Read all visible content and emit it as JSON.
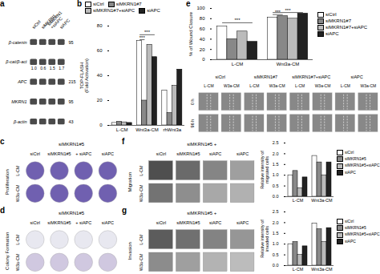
{
  "chart_data": [
    {
      "type": "blot",
      "title": "a",
      "categories": [
        "siCtrl",
        "siMKRN1",
        "siMKRN1\n+siAPC",
        "siAPC"
      ],
      "series": [
        {
          "name": "β-catenin",
          "label": "95"
        },
        {
          "name": "β-cat/β-act",
          "label": null,
          "values": [
            1.0,
            0.6,
            1.5,
            1.7
          ],
          "value_labels": [
            "1.0",
            "0.6",
            "1.5",
            "1.7"
          ]
        },
        {
          "name": "APC",
          "label": "215"
        },
        {
          "name": "MKRN1",
          "label": "95"
        },
        {
          "name": "β-actin",
          "label": "43"
        }
      ],
      "data_labels": true
    },
    {
      "type": "bar",
      "title": "b",
      "categories": [
        "L-CM",
        "Wnt3a-CM",
        "rhWnt3a"
      ],
      "series": [
        {
          "name": "siCtrl",
          "color": "#ffffff",
          "values": [
            2,
            68,
            28
          ]
        },
        {
          "name": "siMKRN1#7",
          "color": "#888888",
          "values": [
            3,
            20,
            10
          ]
        },
        {
          "name": "siMKRN1#7+siAPC",
          "color": "#bbbbbb",
          "values": [
            2.5,
            65,
            32
          ]
        },
        {
          "name": "siAPC",
          "color": "#222222",
          "values": [
            2,
            55,
            45
          ]
        }
      ],
      "ylabel": "TOP-FLASH\n(Fold Activation)",
      "ylim": [
        0,
        80
      ],
      "yticks": [
        0,
        20,
        40,
        60,
        80
      ],
      "legend": "top",
      "annotations": [
        {
          "text": "***",
          "category": "Wnt3a-CM",
          "from": "siCtrl",
          "to": "siAPC",
          "y": 73
        },
        {
          "text": "***",
          "category": "Wnt3a-CM",
          "from": "siCtrl",
          "to": "siMKRN1#7",
          "y": 69
        }
      ]
    },
    {
      "type": "bar",
      "title": "e",
      "categories": [
        "L-CM",
        "Wnt3a-CM"
      ],
      "series": [
        {
          "name": "siCtrl",
          "color": "#ffffff",
          "values": [
            65,
            82
          ]
        },
        {
          "name": "siMKRN1#7",
          "color": "#888888",
          "values": [
            40,
            85
          ]
        },
        {
          "name": "siMKRN1#7+siAPC",
          "color": "#bbbbbb",
          "values": [
            55,
            80
          ]
        },
        {
          "name": "siAPC",
          "color": "#222222",
          "values": [
            35,
            90
          ]
        }
      ],
      "ylabel": "% of Wound Closure",
      "ylim": [
        0,
        100
      ],
      "yticks": [
        0,
        20,
        40,
        60,
        80,
        100
      ],
      "legend": "right",
      "annotations": [
        {
          "text": "***",
          "category": "L-CM",
          "from": "siCtrl",
          "to": "siAPC",
          "y": 72
        },
        {
          "text": "***",
          "category": "Wnt3a-CM",
          "from": "siCtrl",
          "to": "siAPC",
          "y": 92
        },
        {
          "text": "***",
          "category": "Wnt3a-CM",
          "from": "siCtrl",
          "to": "siMKRN1#7",
          "y": 88
        }
      ]
    },
    {
      "type": "image_grid",
      "categories": [
        "siCtrl",
        "siMKRN1#7",
        "siMKRN1#7+siAPC",
        "siAPC"
      ],
      "columns": [
        "L-CM",
        "W3a-CM"
      ],
      "rows": [
        "0 h",
        "96 h"
      ]
    },
    {
      "type": "image_grid",
      "title": "c",
      "subtitle": "siMKRN1#5",
      "categories": [
        "siCtrl",
        "siMKRN1#5",
        "+ siAPC",
        "siAPC"
      ],
      "rows": [
        "L-CM",
        "W3a-CM"
      ],
      "ylabel": "Proliferation"
    },
    {
      "type": "image_grid",
      "title": "d",
      "subtitle": "siMKRN1#5",
      "categories": [
        "siCtrl",
        "siMKRN1#5",
        "+ siAPC",
        "siAPC"
      ],
      "rows": [
        "L-CM",
        "W3a-CM"
      ],
      "ylabel": "Colony Formation"
    },
    {
      "type": "image_grid",
      "title": "f",
      "subtitle": "siMKRN1#5 +",
      "categories": [
        "siCtrl",
        "siMKRN1#5",
        "siAPC",
        "siAPC"
      ],
      "rows": [
        "L-CM",
        "W3a-CM"
      ],
      "ylabel": "Migration"
    },
    {
      "type": "bar",
      "categories": [
        "L-CM",
        "Wnt3a-CM"
      ],
      "series": [
        {
          "name": "siCtrl",
          "color": "#ffffff",
          "values": [
            1.0,
            1.9
          ]
        },
        {
          "name": "siMKRN1#5",
          "color": "#888888",
          "values": [
            1.2,
            1.6
          ]
        },
        {
          "name": "siMKRN1#5+siAPC",
          "color": "#bbbbbb",
          "values": [
            0.4,
            1.0
          ]
        },
        {
          "name": "siAPC",
          "color": "#222222",
          "values": [
            0.9,
            1.6
          ]
        }
      ],
      "ylabel": "Relative intensity of\nmigrated cells",
      "ylim": [
        0,
        2.5
      ],
      "yticks": [
        {
          "value": 0,
          "label": "0.0"
        },
        0.5,
        {
          "value": 1.0,
          "label": "1.0"
        },
        1.5,
        {
          "value": 2.0,
          "label": "2.0"
        },
        2.5
      ],
      "legend": "right"
    },
    {
      "type": "image_grid",
      "title": "g",
      "subtitle": "siMKRN1#5 +",
      "categories": [
        "siCtrl",
        "siMKRN1#5",
        "siAPC",
        "siAPC"
      ],
      "rows": [
        "L-CM",
        "W3a-CM"
      ],
      "ylabel": "Invasion"
    },
    {
      "type": "bar",
      "categories": [
        "L-CM",
        "Wnt3a-CM"
      ],
      "series": [
        {
          "name": "siCtrl",
          "color": "#ffffff",
          "values": [
            1.0,
            1.95
          ]
        },
        {
          "name": "siMKRN1#5",
          "color": "#888888",
          "values": [
            1.1,
            1.7
          ]
        },
        {
          "name": "siMKRN1#5+siAPC",
          "color": "#bbbbbb",
          "values": [
            0.5,
            1.1
          ]
        },
        {
          "name": "siAPC",
          "color": "#222222",
          "values": [
            0.9,
            1.75
          ]
        }
      ],
      "ylabel": "Relative intensity of\ninvaded cells",
      "ylim": [
        0,
        2.5
      ],
      "yticks": [
        {
          "value": 0,
          "label": "0.0"
        },
        0.5,
        {
          "value": 1.0,
          "label": "1.0"
        },
        1.5,
        {
          "value": 2.0,
          "label": "2.0"
        },
        2.5
      ],
      "legend": "right"
    }
  ]
}
